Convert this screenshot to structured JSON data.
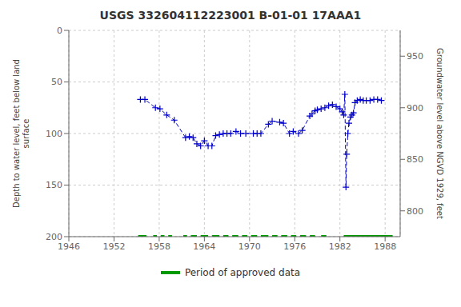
{
  "chart_data": {
    "type": "line",
    "title": "USGS 332604112223001 B-01-01 17AAA1",
    "ylabel": "Depth to water level, feet below land\nsurface",
    "y2label": "Groundwater level above NGVD 1929, feet",
    "xlim": [
      1946,
      1990
    ],
    "xticks": [
      1946,
      1952,
      1958,
      1964,
      1970,
      1976,
      1982,
      1988
    ],
    "ylim": [
      200,
      0
    ],
    "yticks": [
      0,
      50,
      100,
      150,
      200
    ],
    "y2lim": [
      775,
      975
    ],
    "y2ticks": [
      800,
      850,
      900,
      950
    ],
    "grid": true,
    "legend": "bottom",
    "series": [
      {
        "type": "line",
        "color": "#0000cc",
        "line_style": "dashed",
        "marker": "plus",
        "x": [
          1955.5,
          1956.1,
          1957.5,
          1958.1,
          1959.0,
          1960.0,
          1961.5,
          1962.0,
          1962.5,
          1963.0,
          1963.5,
          1964.0,
          1964.5,
          1965.0,
          1965.5,
          1966.0,
          1966.5,
          1967.0,
          1967.5,
          1968.2,
          1968.8,
          1969.5,
          1970.5,
          1971.0,
          1971.5,
          1972.5,
          1973.0,
          1974.0,
          1974.5,
          1975.3,
          1975.8,
          1976.5,
          1977.0,
          1978.0,
          1978.3,
          1978.7,
          1979.0,
          1979.5,
          1980.0,
          1980.5,
          1981.0,
          1981.5,
          1982.0,
          1982.3,
          1982.5,
          1982.65,
          1982.8,
          1982.9,
          1983.05,
          1983.2,
          1983.4,
          1983.6,
          1983.8,
          1984.0,
          1984.3,
          1984.7,
          1985.1,
          1985.5,
          1986.0,
          1986.5,
          1987.0,
          1987.5
        ],
        "values": [
          67,
          67,
          75,
          76,
          82,
          87,
          104,
          103,
          104,
          110,
          112,
          107,
          112,
          112,
          102,
          101,
          100,
          100,
          100,
          98,
          100,
          100,
          100,
          100,
          100,
          91,
          88,
          89,
          90,
          100,
          98,
          100,
          97,
          83,
          81,
          78,
          77,
          76,
          75,
          73,
          72,
          74,
          76,
          79,
          82,
          62,
          152,
          120,
          100,
          90,
          84,
          82,
          80,
          70,
          68,
          67,
          68,
          68,
          68,
          67,
          67,
          68
        ]
      },
      {
        "type": "segments",
        "name": "Period of approved data",
        "color": "#009900",
        "value": 200,
        "segments": [
          [
            1955.2,
            1956.3
          ],
          [
            1957.2,
            1957.7
          ],
          [
            1958.2,
            1958.7
          ],
          [
            1959.2,
            1959.7
          ],
          [
            1961.2,
            1961.7
          ],
          [
            1962.2,
            1963.0
          ],
          [
            1963.5,
            1964.5
          ],
          [
            1965.0,
            1966.0
          ],
          [
            1966.5,
            1967.2
          ],
          [
            1967.7,
            1968.5
          ],
          [
            1969.0,
            1969.7
          ],
          [
            1970.2,
            1971.0
          ],
          [
            1971.5,
            1972.5
          ],
          [
            1973.0,
            1973.7
          ],
          [
            1974.2,
            1975.0
          ],
          [
            1975.5,
            1976.2
          ],
          [
            1976.7,
            1977.5
          ],
          [
            1978.0,
            1978.7
          ],
          [
            1979.5,
            1980.2
          ],
          [
            1982.5,
            1989.0
          ]
        ]
      }
    ]
  }
}
